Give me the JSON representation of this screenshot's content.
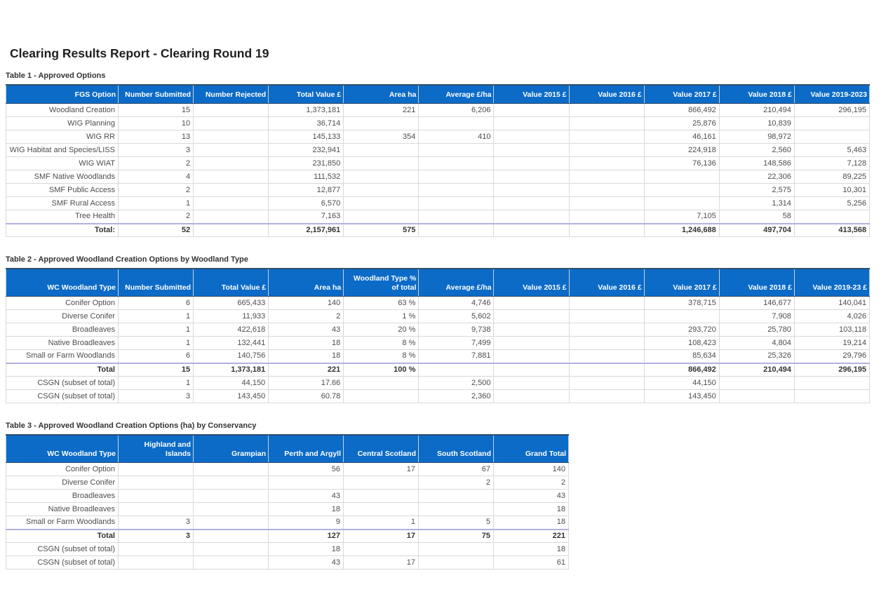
{
  "page": {
    "title": "Clearing Results Report - Clearing Round 19"
  },
  "tables": [
    {
      "caption": "Table 1 - Approved Options",
      "columns": [
        "FGS Option",
        "Number Submitted",
        "Number Rejected",
        "Total Value £",
        "Area ha",
        "Average £/ha",
        "Value 2015 £",
        "Value 2016 £",
        "Value 2017 £",
        "Value 2018 £",
        "Value 2019-2023"
      ],
      "rows": [
        {
          "total": false,
          "cells": [
            "Woodland Creation",
            "15",
            "",
            "1,373,181",
            "221",
            "6,206",
            "",
            "",
            "866,492",
            "210,494",
            "296,195"
          ]
        },
        {
          "total": false,
          "cells": [
            "WIG Planning",
            "10",
            "",
            "36,714",
            "",
            "",
            "",
            "",
            "25,876",
            "10,839",
            ""
          ]
        },
        {
          "total": false,
          "cells": [
            "WIG RR",
            "13",
            "",
            "145,133",
            "354",
            "410",
            "",
            "",
            "46,161",
            "98,972",
            ""
          ]
        },
        {
          "total": false,
          "cells": [
            "WIG Habitat and Species/LISS",
            "3",
            "",
            "232,941",
            "",
            "",
            "",
            "",
            "224,918",
            "2,560",
            "5,463"
          ]
        },
        {
          "total": false,
          "cells": [
            "WIG WIAT",
            "2",
            "",
            "231,850",
            "",
            "",
            "",
            "",
            "76,136",
            "148,586",
            "7,128"
          ]
        },
        {
          "total": false,
          "cells": [
            "SMF Native Woodlands",
            "4",
            "",
            "111,532",
            "",
            "",
            "",
            "",
            "",
            "22,306",
            "89,225"
          ]
        },
        {
          "total": false,
          "cells": [
            "SMF Public Access",
            "2",
            "",
            "12,877",
            "",
            "",
            "",
            "",
            "",
            "2,575",
            "10,301"
          ]
        },
        {
          "total": false,
          "cells": [
            "SMF Rural Access",
            "1",
            "",
            "6,570",
            "",
            "",
            "",
            "",
            "",
            "1,314",
            "5,256"
          ]
        },
        {
          "total": false,
          "cells": [
            "Tree Health",
            "2",
            "",
            "7,163",
            "",
            "",
            "",
            "",
            "7,105",
            "58",
            ""
          ]
        },
        {
          "total": true,
          "cells": [
            "Total:",
            "52",
            "",
            "2,157,961",
            "575",
            "",
            "",
            "",
            "1,246,688",
            "497,704",
            "413,568"
          ]
        }
      ]
    },
    {
      "caption": "Table 2 - Approved Woodland Creation Options by Woodland Type",
      "columns": [
        "WC Woodland Type",
        "Number Submitted",
        "Total Value £",
        "Area ha",
        "Woodland Type % of total",
        "Average £/ha",
        "Value 2015 £",
        "Value 2016 £",
        "Value 2017 £",
        "Value 2018 £",
        "Value 2019-23 £"
      ],
      "rows": [
        {
          "total": false,
          "cells": [
            "Conifer Option",
            "6",
            "665,433",
            "140",
            "63 %",
            "4,746",
            "",
            "",
            "378,715",
            "146,677",
            "140,041"
          ]
        },
        {
          "total": false,
          "cells": [
            "Diverse Conifer",
            "1",
            "11,933",
            "2",
            "1 %",
            "5,602",
            "",
            "",
            "",
            "7,908",
            "4,026"
          ]
        },
        {
          "total": false,
          "cells": [
            "Broadleaves",
            "1",
            "422,618",
            "43",
            "20 %",
            "9,738",
            "",
            "",
            "293,720",
            "25,780",
            "103,118"
          ]
        },
        {
          "total": false,
          "cells": [
            "Native Broadleaves",
            "1",
            "132,441",
            "18",
            "8 %",
            "7,499",
            "",
            "",
            "108,423",
            "4,804",
            "19,214"
          ]
        },
        {
          "total": false,
          "cells": [
            "Small or Farm Woodlands",
            "6",
            "140,756",
            "18",
            "8 %",
            "7,881",
            "",
            "",
            "85,634",
            "25,326",
            "29,796"
          ]
        },
        {
          "total": true,
          "cells": [
            "Total",
            "15",
            "1,373,181",
            "221",
            "100 %",
            "",
            "",
            "",
            "866,492",
            "210,494",
            "296,195"
          ]
        },
        {
          "total": false,
          "cells": [
            "CSGN (subset of total)",
            "1",
            "44,150",
            "17.66",
            "",
            "2,500",
            "",
            "",
            "44,150",
            "",
            ""
          ]
        },
        {
          "total": false,
          "cells": [
            "CSGN (subset of total)",
            "3",
            "143,450",
            "60.78",
            "",
            "2,360",
            "",
            "",
            "143,450",
            "",
            ""
          ]
        }
      ]
    },
    {
      "caption": "Table 3 - Approved Woodland Creation Options (ha) by Conservancy",
      "columns": [
        "WC Woodland Type",
        "Highland and Islands",
        "Grampian",
        "Perth and Argyll",
        "Central Scotland",
        "South Scotland",
        "Grand Total"
      ],
      "rows": [
        {
          "total": false,
          "cells": [
            "Conifer Option",
            "",
            "",
            "56",
            "17",
            "67",
            "140"
          ]
        },
        {
          "total": false,
          "cells": [
            "Diverse Conifer",
            "",
            "",
            "",
            "",
            "2",
            "2"
          ]
        },
        {
          "total": false,
          "cells": [
            "Broadleaves",
            "",
            "",
            "43",
            "",
            "",
            "43"
          ]
        },
        {
          "total": false,
          "cells": [
            "Native Broadleaves",
            "",
            "",
            "18",
            "",
            "",
            "18"
          ]
        },
        {
          "total": false,
          "cells": [
            "Small or Farm Woodlands",
            "3",
            "",
            "9",
            "1",
            "5",
            "18"
          ]
        },
        {
          "total": true,
          "cells": [
            "Total",
            "3",
            "",
            "127",
            "17",
            "75",
            "221"
          ]
        },
        {
          "total": false,
          "cells": [
            "CSGN (subset of total)",
            "",
            "",
            "18",
            "",
            "",
            "18"
          ]
        },
        {
          "total": false,
          "cells": [
            "CSGN (subset of total)",
            "",
            "",
            "43",
            "17",
            "",
            "61"
          ]
        }
      ]
    }
  ]
}
